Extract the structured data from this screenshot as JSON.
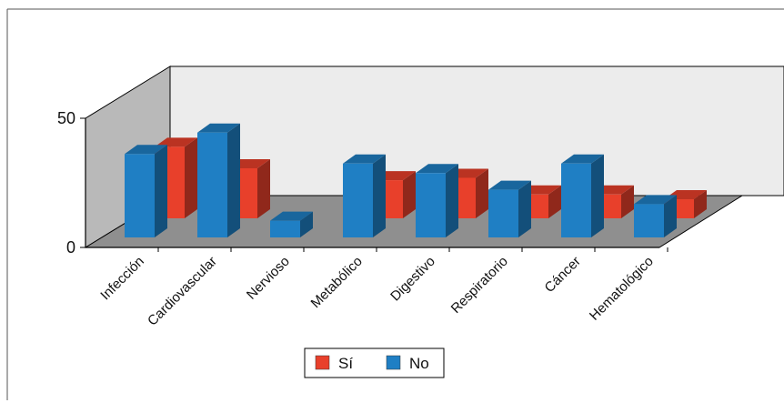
{
  "chart_data": {
    "type": "bar",
    "categories": [
      "Infección",
      "Cardiovascular",
      "Nervioso",
      "Metabólico",
      "Digestivo",
      "Respiratorio",
      "Cáncer",
      "Hematológico"
    ],
    "series": [
      {
        "name": "Sí",
        "color": "#e8402b",
        "values": [
          30,
          21,
          0,
          16,
          17,
          10,
          10,
          8
        ]
      },
      {
        "name": "No",
        "color": "#1f7fc4",
        "values": [
          35,
          44,
          7,
          31,
          27,
          20,
          31,
          14
        ]
      }
    ],
    "yticks": [
      "0",
      "50"
    ],
    "ylim": [
      0,
      50
    ],
    "legend": "bottom-center",
    "grid": false
  }
}
